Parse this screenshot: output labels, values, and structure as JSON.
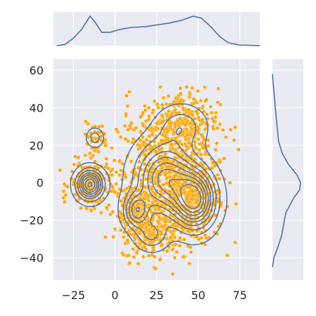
{
  "chart_data": {
    "type": "scatter",
    "title": "",
    "xlabel": "",
    "ylabel": "",
    "xlim": [
      -37,
      87
    ],
    "ylim": [
      -52,
      66
    ],
    "x_ticks": [
      -25,
      0,
      25,
      50,
      75
    ],
    "y_ticks": [
      -40,
      -20,
      0,
      20,
      40,
      60
    ],
    "x_tick_labels": [
      "−25",
      "0",
      "25",
      "50",
      "75"
    ],
    "y_tick_labels": [
      "−40",
      "−20",
      "0",
      "20",
      "40",
      "60"
    ],
    "grid": true,
    "legend": "none",
    "scatter_clusters": [
      {
        "cx": 45,
        "cy": -8,
        "sx": 10,
        "sy": 12,
        "n": 520
      },
      {
        "cx": 30,
        "cy": 5,
        "sx": 14,
        "sy": 16,
        "n": 520
      },
      {
        "cx": 14,
        "cy": -15,
        "sx": 7,
        "sy": 8,
        "n": 220
      },
      {
        "cx": -15,
        "cy": -1,
        "sx": 6,
        "sy": 6,
        "n": 220
      },
      {
        "cx": 38,
        "cy": 32,
        "sx": 12,
        "sy": 9,
        "n": 260
      },
      {
        "cx": 22,
        "cy": -28,
        "sx": 8,
        "sy": 7,
        "n": 140
      },
      {
        "cx": -12,
        "cy": 24,
        "sx": 4,
        "sy": 4,
        "n": 40
      }
    ],
    "kde_modes": [
      {
        "cx": -15,
        "cy": -1,
        "sx": 5,
        "sy": 5,
        "w": 0.9
      },
      {
        "cx": 48,
        "cy": -9,
        "sx": 8,
        "sy": 10,
        "w": 1.0
      },
      {
        "cx": 30,
        "cy": 2,
        "sx": 11,
        "sy": 12,
        "w": 0.8
      },
      {
        "cx": 13,
        "cy": -15,
        "sx": 5,
        "sy": 6,
        "w": 0.55
      },
      {
        "cx": 40,
        "cy": 30,
        "sx": 9,
        "sy": 7,
        "w": 0.25
      },
      {
        "cx": 22,
        "cy": -28,
        "sx": 6,
        "sy": 5,
        "w": 0.3
      },
      {
        "cx": -12,
        "cy": 24,
        "sx": 3,
        "sy": 3,
        "w": 0.25
      }
    ],
    "marginal_x": {
      "points": [
        [
          -35,
          0.0
        ],
        [
          -30,
          0.04
        ],
        [
          -25,
          0.25
        ],
        [
          -20,
          0.55
        ],
        [
          -15,
          1.0
        ],
        [
          -12,
          0.8
        ],
        [
          -8,
          0.45
        ],
        [
          -3,
          0.45
        ],
        [
          3,
          0.55
        ],
        [
          10,
          0.62
        ],
        [
          18,
          0.64
        ],
        [
          25,
          0.7
        ],
        [
          33,
          0.77
        ],
        [
          40,
          0.86
        ],
        [
          47,
          1.0
        ],
        [
          52,
          0.93
        ],
        [
          58,
          0.62
        ],
        [
          63,
          0.3
        ],
        [
          68,
          0.1
        ],
        [
          75,
          0.02
        ],
        [
          87,
          0.0
        ]
      ]
    },
    "marginal_y": {
      "points": [
        [
          -45,
          0.0
        ],
        [
          -40,
          0.05
        ],
        [
          -35,
          0.18
        ],
        [
          -28,
          0.33
        ],
        [
          -22,
          0.4
        ],
        [
          -16,
          0.48
        ],
        [
          -12,
          0.62
        ],
        [
          -8,
          0.76
        ],
        [
          -4,
          0.96
        ],
        [
          0,
          1.0
        ],
        [
          4,
          0.88
        ],
        [
          10,
          0.56
        ],
        [
          16,
          0.34
        ],
        [
          22,
          0.22
        ],
        [
          28,
          0.18
        ],
        [
          34,
          0.14
        ],
        [
          40,
          0.1
        ],
        [
          46,
          0.07
        ],
        [
          52,
          0.03
        ],
        [
          58,
          0.0
        ]
      ]
    },
    "colors": {
      "scatter": "#ffa500",
      "scatter_edge": "#ffffff",
      "kde": "#4c72b0",
      "panel_bg": "#eaeaf2",
      "grid": "#ffffff"
    }
  }
}
